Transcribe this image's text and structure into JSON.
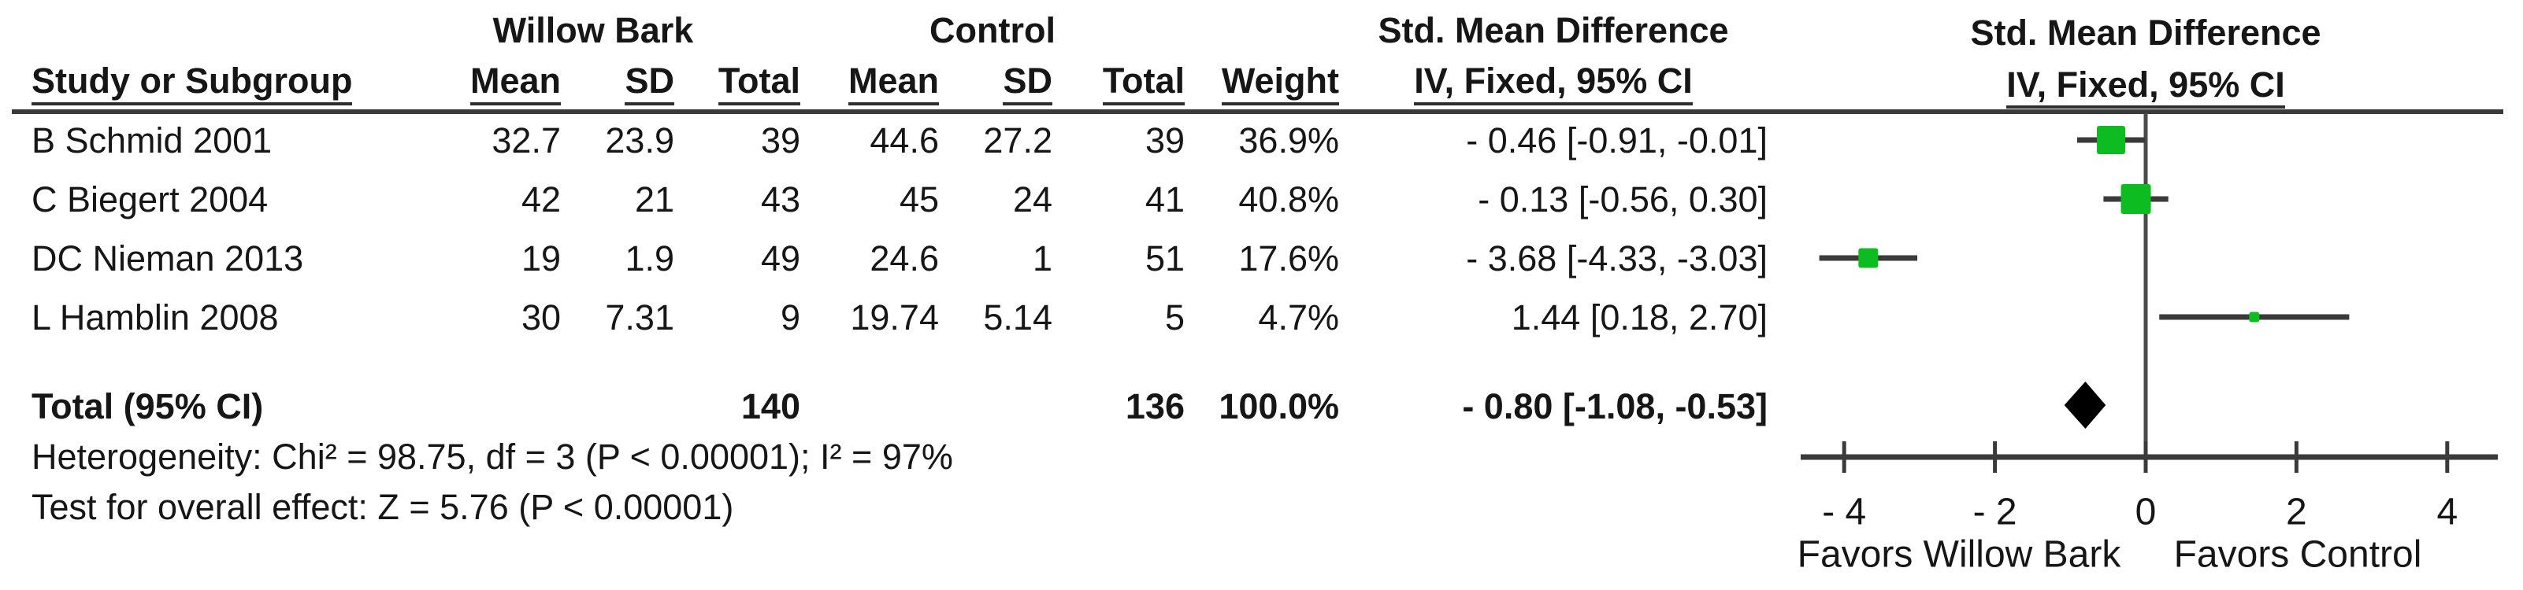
{
  "chart_data": {
    "type": "forest",
    "effect_measure": "Std. Mean Difference",
    "header": {
      "group_treatment": "Willow Bark",
      "group_control": "Control",
      "smd_text_col_title": "Std. Mean Difference",
      "smd_plot_col_title": "Std. Mean Difference",
      "method_text_col": "IV, Fixed, 95% CI",
      "method_plot_col": "IV, Fixed, 95% CI",
      "col_study": "Study or Subgroup",
      "col_mean": "Mean",
      "col_sd": "SD",
      "col_total": "Total",
      "col_weight": "Weight"
    },
    "studies": [
      {
        "label": "B Schmid 2001",
        "t_mean": "32.7",
        "t_sd": "23.9",
        "t_total": "39",
        "c_mean": "44.6",
        "c_sd": "27.2",
        "c_total": "39",
        "weight": "36.9%",
        "weight_pct": 36.9,
        "smd": -0.46,
        "ci_low": -0.91,
        "ci_high": -0.01,
        "ci_text": "- 0.46 [-0.91, -0.01]"
      },
      {
        "label": "C Biegert 2004",
        "t_mean": "42",
        "t_sd": "21",
        "t_total": "43",
        "c_mean": "45",
        "c_sd": "24",
        "c_total": "41",
        "weight": "40.8%",
        "weight_pct": 40.8,
        "smd": -0.13,
        "ci_low": -0.56,
        "ci_high": 0.3,
        "ci_text": "- 0.13 [-0.56, 0.30]"
      },
      {
        "label": "DC Nieman 2013",
        "t_mean": "19",
        "t_sd": "1.9",
        "t_total": "49",
        "c_mean": "24.6",
        "c_sd": "1",
        "c_total": "51",
        "weight": "17.6%",
        "weight_pct": 17.6,
        "smd": -3.68,
        "ci_low": -4.33,
        "ci_high": -3.03,
        "ci_text": "- 3.68 [-4.33, -3.03]"
      },
      {
        "label": "L Hamblin 2008",
        "t_mean": "30",
        "t_sd": "7.31",
        "t_total": "9",
        "c_mean": "19.74",
        "c_sd": "5.14",
        "c_total": "5",
        "weight": "4.7%",
        "weight_pct": 4.7,
        "smd": 1.44,
        "ci_low": 0.18,
        "ci_high": 2.7,
        "ci_text": "1.44 [0.18, 2.70]"
      }
    ],
    "total": {
      "label": "Total (95% CI)",
      "t_total": "140",
      "c_total": "136",
      "weight": "100.0%",
      "smd": -0.8,
      "ci_low": -1.08,
      "ci_high": -0.53,
      "ci_text": "- 0.80 [-1.08, -0.53]"
    },
    "heterogeneity": "Heterogeneity: Chi² = 98.75, df = 3 (P < 0.00001); I² = 97%",
    "overall_effect": "Test for overall effect: Z = 5.76 (P < 0.00001)",
    "axis": {
      "xlim": [
        -4.6,
        4.67
      ],
      "ticks": [
        -4,
        -2,
        0,
        2,
        4
      ],
      "tick_labels": [
        "- 4",
        "- 2",
        "0",
        "2",
        "4"
      ],
      "favors_left": "Favors Willow Bark",
      "favors_right": "Favors Control",
      "grid": false
    },
    "colors": {
      "marker_green": "#0cbc20",
      "line_dark": "#3a3a3a",
      "zero_line": "#4a4a4a",
      "diamond_black": "#000000"
    }
  }
}
